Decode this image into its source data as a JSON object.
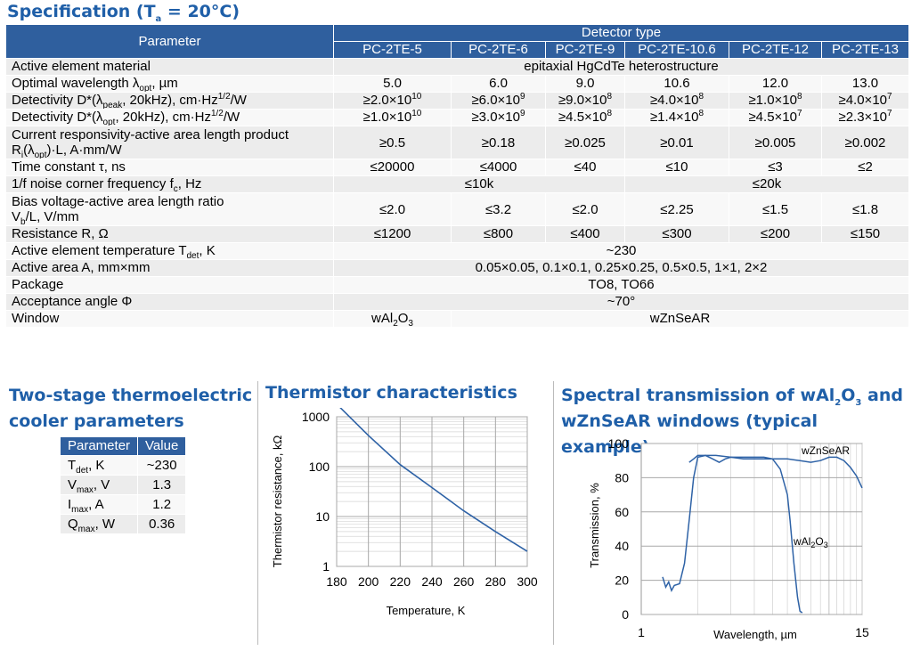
{
  "spec": {
    "title_main": "Specification (T",
    "title_sub": "a",
    "title_end": " = 20°C)",
    "header": {
      "parameter": "Parameter",
      "detector_type": "Detector type",
      "models": [
        "PC-2TE-5",
        "PC-2TE-6",
        "PC-2TE-9",
        "PC-2TE-10.6",
        "PC-2TE-12",
        "PC-2TE-13"
      ]
    },
    "rows": {
      "material": {
        "label": "Active element material",
        "value": "epitaxial HgCdTe heterostructure"
      },
      "wavelength": {
        "label_a": "Optimal wavelength λ",
        "label_sub": "opt",
        "label_b": ", µm",
        "values": [
          "5.0",
          "6.0",
          "9.0",
          "10.6",
          "12.0",
          "13.0"
        ]
      },
      "det_peak": {
        "label_a": "Detectivity D*(λ",
        "label_sub": "peak",
        "label_b": ", 20kHz), cm·Hz",
        "label_sup": "1/2",
        "label_c": "/W",
        "values": [
          {
            "m": "≥2.0×10",
            "e": "10"
          },
          {
            "m": "≥6.0×10",
            "e": "9"
          },
          {
            "m": "≥9.0×10",
            "e": "8"
          },
          {
            "m": "≥4.0×10",
            "e": "8"
          },
          {
            "m": "≥1.0×10",
            "e": "8"
          },
          {
            "m": "≥4.0×10",
            "e": "7"
          }
        ]
      },
      "det_opt": {
        "label_a": "Detectivity D*(λ",
        "label_sub": "opt",
        "label_b": ", 20kHz), cm·Hz",
        "label_sup": "1/2",
        "label_c": "/W",
        "values": [
          {
            "m": "≥1.0×10",
            "e": "10"
          },
          {
            "m": "≥3.0×10",
            "e": "9"
          },
          {
            "m": "≥4.5×10",
            "e": "8"
          },
          {
            "m": "≥1.4×10",
            "e": "8"
          },
          {
            "m": "≥4.5×10",
            "e": "7"
          },
          {
            "m": "≥2.3×10",
            "e": "7"
          }
        ]
      },
      "responsivity": {
        "line1": "Current responsivity-active area length product",
        "line2_a": "R",
        "line2_sub1": "i",
        "line2_b": "(λ",
        "line2_sub2": "opt",
        "line2_c": ")·L, A·mm/W",
        "values": [
          "≥0.5",
          "≥0.18",
          "≥0.025",
          "≥0.01",
          "≥0.005",
          "≥0.002"
        ]
      },
      "time_const": {
        "label": "Time constant τ, ns",
        "values": [
          "≤20000",
          "≤4000",
          "≤40",
          "≤10",
          "≤3",
          "≤2"
        ]
      },
      "noise_freq": {
        "label_a": "1/f noise corner frequency f",
        "label_sub": "c",
        "label_b": ", Hz",
        "value_left": "≤10k",
        "value_right": "≤20k"
      },
      "bias": {
        "line1": "Bias voltage-active area length ratio",
        "line2_a": "V",
        "line2_sub": "b",
        "line2_b": "/L, V/mm",
        "values": [
          "≤2.0",
          "≤3.2",
          "≤2.0",
          "≤2.25",
          "≤1.5",
          "≤1.8"
        ]
      },
      "resistance": {
        "label": "Resistance R, Ω",
        "values": [
          "≤1200",
          "≤800",
          "≤400",
          "≤300",
          "≤200",
          "≤150"
        ]
      },
      "temperature": {
        "label_a": "Active element temperature T",
        "label_sub": "det",
        "label_b": ", K",
        "value": "~230"
      },
      "area": {
        "label": "Active area A, mm×mm",
        "value": "0.05×0.05, 0.1×0.1, 0.25×0.25, 0.5×0.5, 1×1, 2×2"
      },
      "package": {
        "label": "Package",
        "value": "TO8, TO66"
      },
      "acceptance": {
        "label": "Acceptance angle Φ",
        "value": "~70°"
      },
      "window": {
        "label": "Window",
        "value_left_a": "wAl",
        "value_left_s1": "2",
        "value_left_b": "O",
        "value_left_s2": "3",
        "value_right": "wZnSeAR"
      }
    }
  },
  "tec": {
    "title_line1": "Two-stage thermoelectric",
    "title_line2": "cooler parameters",
    "header_param": "Parameter",
    "header_value": "Value",
    "rows": [
      {
        "sym": "T",
        "sub": "det",
        "unit": ", K",
        "value": "~230"
      },
      {
        "sym": "V",
        "sub": "max",
        "unit": ", V",
        "value": "1.3"
      },
      {
        "sym": "I",
        "sub": "max",
        "unit": ", A",
        "value": "1.2"
      },
      {
        "sym": "Q",
        "sub": "max",
        "unit": ", W",
        "value": "0.36"
      }
    ]
  },
  "thermistor": {
    "title": "Thermistor characteristics",
    "ylabel": "Thermistor resistance, kΩ",
    "xlabel": "Temperature, K"
  },
  "spectral": {
    "title_line1_a": "Spectral transmission of wAl",
    "title_line1_s1": "2",
    "title_line1_b": "O",
    "title_line1_s2": "3",
    "title_line1_c": " and",
    "title_line2": "wZnSeAR windows (typical example)",
    "ylabel": "Transmission, %",
    "xlabel": "Wavelength, µm",
    "label_znse": "wZnSeAR",
    "label_al_a": "wAl",
    "label_al_s1": "2",
    "label_al_b": "O",
    "label_al_s2": "3"
  },
  "chart_data": [
    {
      "type": "line",
      "xlim": [
        180,
        300
      ],
      "ylim": [
        1,
        1000
      ],
      "yscale": "log",
      "grid": true,
      "xticks": [
        180,
        200,
        220,
        240,
        260,
        280,
        300
      ],
      "yticks": [
        1,
        10,
        100,
        1000
      ],
      "series": [
        {
          "x": [
            180,
            200,
            220,
            240,
            260,
            280,
            300
          ],
          "values": [
            1800,
            420,
            110,
            38,
            13,
            5,
            2
          ]
        }
      ]
    },
    {
      "type": "line",
      "xlim": [
        1,
        15
      ],
      "ylim": [
        0,
        100
      ],
      "xscale": "log",
      "grid": true,
      "xticks": [
        1,
        15
      ],
      "yticks": [
        0,
        20,
        40,
        60,
        80,
        100
      ],
      "series": [
        {
          "name": "wZnSeAR",
          "x": [
            1.8,
            1.9,
            2.0,
            2.2,
            2.4,
            2.6,
            2.8,
            3.0,
            3.5,
            4,
            5,
            6,
            7,
            8,
            9,
            10,
            11,
            12,
            13,
            14,
            15
          ],
          "values": [
            89,
            91,
            93,
            93,
            91,
            89,
            91,
            92,
            91,
            91,
            91,
            91,
            90,
            89,
            90,
            92,
            92,
            90,
            86,
            81,
            74
          ]
        },
        {
          "name": "wAl2O3",
          "x": [
            1.3,
            1.35,
            1.4,
            1.45,
            1.5,
            1.6,
            1.7,
            1.8,
            1.9,
            2.0,
            2.2,
            2.5,
            3,
            3.5,
            4,
            4.5,
            5,
            5.5,
            6,
            6.2,
            6.5,
            6.8,
            7.0,
            7.2
          ],
          "values": [
            22,
            16,
            19,
            14,
            17,
            18,
            30,
            55,
            80,
            92,
            93,
            93,
            92,
            92,
            92,
            92,
            91,
            85,
            70,
            55,
            30,
            10,
            2,
            1
          ]
        }
      ]
    }
  ]
}
